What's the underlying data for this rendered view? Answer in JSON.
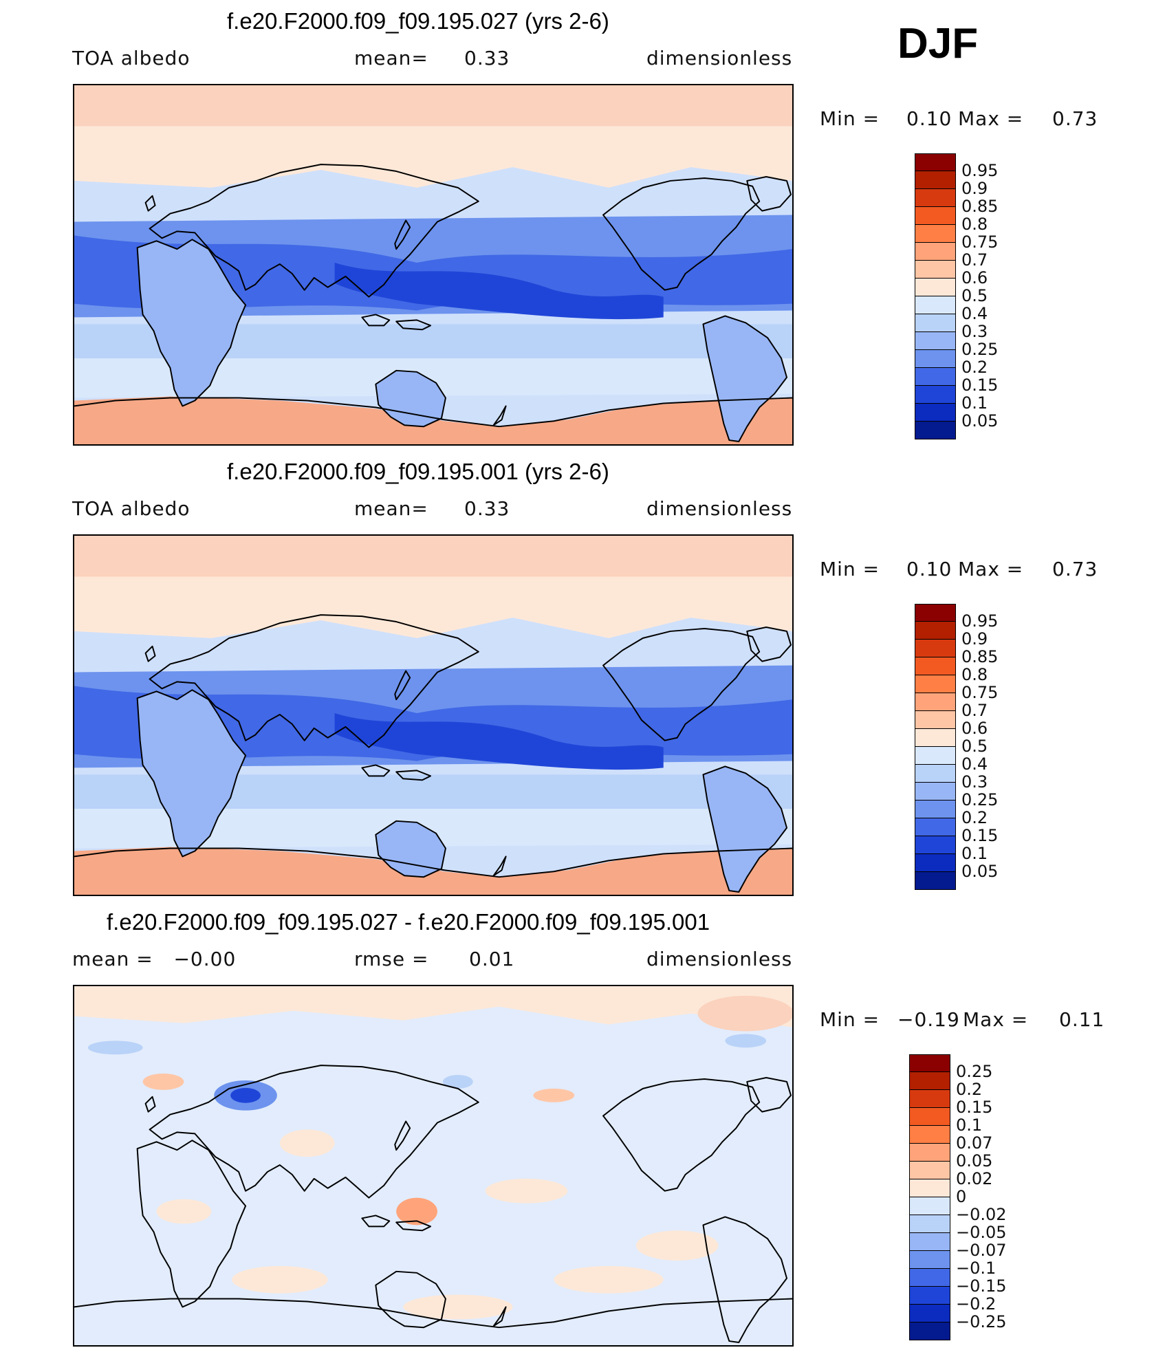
{
  "season": "DJF",
  "panels": [
    {
      "title": "f.e20.F2000.f09_f09.195.027 (yrs 2-6)",
      "left": "TOA albedo",
      "middle_label": "mean=",
      "middle_value": "0.33",
      "right": "dimensionless",
      "min_label": "Min =",
      "min_value": "0.10",
      "max_label": "Max =",
      "max_value": "0.73",
      "colorbar": {
        "labels": [
          "0.95",
          "0.9",
          "0.85",
          "0.8",
          "0.75",
          "0.7",
          "0.6",
          "0.5",
          "0.4",
          "0.3",
          "0.25",
          "0.2",
          "0.15",
          "0.1",
          "0.05"
        ],
        "colors": [
          "#8b0000",
          "#b22000",
          "#d83a10",
          "#f25a22",
          "#ff7f45",
          "#ffa47a",
          "#ffc6a6",
          "#fde8d8",
          "#d9e8fb",
          "#b9d2f8",
          "#98b6f5",
          "#6d93ee",
          "#4168e6",
          "#1f45d8",
          "#0c2bbf",
          "#041a8f"
        ]
      }
    },
    {
      "title": "f.e20.F2000.f09_f09.195.001 (yrs 2-6)",
      "left": "TOA albedo",
      "middle_label": "mean=",
      "middle_value": "0.33",
      "right": "dimensionless",
      "min_label": "Min =",
      "min_value": "0.10",
      "max_label": "Max =",
      "max_value": "0.73",
      "colorbar": {
        "labels": [
          "0.95",
          "0.9",
          "0.85",
          "0.8",
          "0.75",
          "0.7",
          "0.6",
          "0.5",
          "0.4",
          "0.3",
          "0.25",
          "0.2",
          "0.15",
          "0.1",
          "0.05"
        ],
        "colors": [
          "#8b0000",
          "#b22000",
          "#d83a10",
          "#f25a22",
          "#ff7f45",
          "#ffa47a",
          "#ffc6a6",
          "#fde8d8",
          "#d9e8fb",
          "#b9d2f8",
          "#98b6f5",
          "#6d93ee",
          "#4168e6",
          "#1f45d8",
          "#0c2bbf",
          "#041a8f"
        ]
      }
    },
    {
      "title": "f.e20.F2000.f09_f09.195.027 - f.e20.F2000.f09_f09.195.001",
      "left": "mean =   −0.00",
      "middle_label": "rmse =",
      "middle_value": "0.01",
      "right": "dimensionless",
      "min_label": "Min =",
      "min_value": "−0.19",
      "max_label": "Max =",
      "max_value": "0.11",
      "colorbar": {
        "labels": [
          "0.25",
          "0.2",
          "0.15",
          "0.1",
          "0.07",
          "0.05",
          "0.02",
          "0",
          "−0.02",
          "−0.05",
          "−0.07",
          "−0.1",
          "−0.15",
          "−0.2",
          "−0.25"
        ],
        "colors": [
          "#8b0000",
          "#b22000",
          "#d83a10",
          "#f25a22",
          "#ff7f45",
          "#ffa47a",
          "#ffc6a6",
          "#fde8d8",
          "#d9e8fb",
          "#b9d2f8",
          "#98b6f5",
          "#6d93ee",
          "#4168e6",
          "#1f45d8",
          "#0c2bbf",
          "#041a8f"
        ]
      }
    }
  ]
}
